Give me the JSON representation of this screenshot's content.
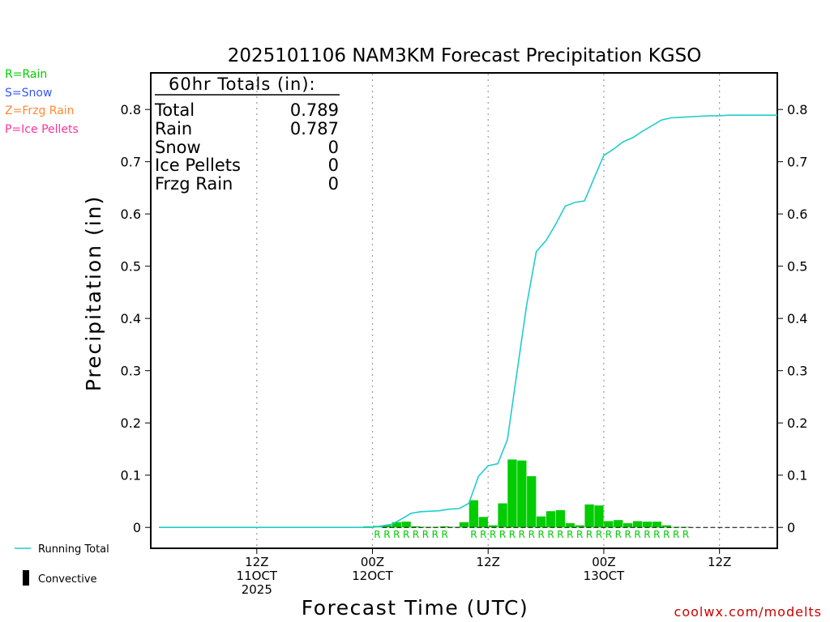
{
  "title": "2025101106 NAM3KM Forecast Precipitation KGSO",
  "legend_types": [
    {
      "label": "R=Rain",
      "color": "#00cc00"
    },
    {
      "label": "S=Snow",
      "color": "#3355ff"
    },
    {
      "label": "Z=Frzg Rain",
      "color": "#ff8833"
    },
    {
      "label": "P=Ice Pellets",
      "color": "#ff3399"
    }
  ],
  "totals": {
    "header": "60hr Totals (in):",
    "rows": [
      {
        "label": "Total",
        "value": "0.789"
      },
      {
        "label": "Rain",
        "value": "0.787"
      },
      {
        "label": "Snow",
        "value": "0"
      },
      {
        "label": "Ice Pellets",
        "value": "0"
      },
      {
        "label": "Frzg Rain",
        "value": "0"
      }
    ]
  },
  "bottom_legend": {
    "running_total": "Running Total",
    "convective": "Convective"
  },
  "credit": "coolwx.com/modelts",
  "colors": {
    "bar": "#00cc00",
    "line": "#22cccc",
    "rain_marker": "#00cc00"
  },
  "chart_data": {
    "type": "bar",
    "title": "2025101106 NAM3KM Forecast Precipitation KGSO",
    "xlabel": "Forecast Time (UTC)",
    "ylabel": "Precipitation (in)",
    "x_unit": "forecast hour",
    "xlim": [
      -5,
      60
    ],
    "ylim": [
      -0.04,
      0.87
    ],
    "yticks": [
      0,
      0.1,
      0.2,
      0.3,
      0.4,
      0.5,
      0.6,
      0.7,
      0.8
    ],
    "ytick_labels": [
      "0",
      "0.1",
      "0.2",
      "0.3",
      "0.4",
      "0.5",
      "0.6",
      "0.7",
      "0.8"
    ],
    "xticks": [
      {
        "hour": 6,
        "lines": [
          "12Z",
          "11OCT",
          "2025"
        ]
      },
      {
        "hour": 18,
        "lines": [
          "00Z",
          "12OCT"
        ]
      },
      {
        "hour": 30,
        "lines": [
          "12Z",
          ""
        ]
      },
      {
        "hour": 42,
        "lines": [
          "00Z",
          "13OCT"
        ]
      },
      {
        "hour": 54,
        "lines": [
          "12Z",
          ""
        ]
      }
    ],
    "series": [
      {
        "name": "Hourly precipitation",
        "type": "bar",
        "hours": [
          18,
          19,
          20,
          21,
          22,
          23,
          24,
          25,
          26,
          27,
          28,
          29,
          30,
          31,
          32,
          33,
          34,
          35,
          36,
          37,
          38,
          39,
          40,
          41,
          42,
          43,
          44,
          45,
          46,
          47,
          48,
          49,
          50,
          51
        ],
        "values": [
          0.002,
          0.003,
          0.004,
          0.01,
          0.011,
          0.002,
          0.001,
          0.001,
          0.002,
          0.001,
          0.01,
          0.052,
          0.02,
          0.004,
          0.046,
          0.13,
          0.128,
          0.098,
          0.021,
          0.031,
          0.033,
          0.008,
          0.004,
          0.044,
          0.042,
          0.012,
          0.014,
          0.008,
          0.012,
          0.011,
          0.011,
          0.004,
          0.001,
          0.001
        ]
      },
      {
        "name": "Running Total",
        "type": "line",
        "hours": [
          0,
          18,
          19,
          20,
          21,
          22,
          23,
          24,
          25,
          26,
          27,
          28,
          29,
          30,
          31,
          32,
          33,
          34,
          35,
          36,
          37,
          38,
          39,
          40,
          41,
          42,
          43,
          44,
          45,
          46,
          47,
          48,
          49,
          50,
          51,
          52,
          53,
          54,
          55,
          56,
          57,
          58,
          59,
          60
        ],
        "values": [
          0,
          0,
          0.003,
          0.006,
          0.016,
          0.027,
          0.03,
          0.031,
          0.032,
          0.035,
          0.036,
          0.046,
          0.098,
          0.118,
          0.122,
          0.168,
          0.298,
          0.426,
          0.528,
          0.549,
          0.58,
          0.615,
          0.622,
          0.625,
          0.669,
          0.712,
          0.724,
          0.738,
          0.746,
          0.758,
          0.769,
          0.78,
          0.784,
          0.785,
          0.786,
          0.787,
          0.788,
          0.788,
          0.789,
          0.789,
          0.789,
          0.789,
          0.789,
          0.789
        ]
      }
    ],
    "ptype_markers": {
      "symbol": "R",
      "hours": [
        19,
        20,
        21,
        22,
        23,
        24,
        25,
        26,
        29,
        30,
        31,
        32,
        33,
        34,
        35,
        36,
        37,
        38,
        39,
        40,
        41,
        42,
        43,
        44,
        45,
        46,
        47,
        48,
        49,
        50,
        51
      ]
    }
  }
}
